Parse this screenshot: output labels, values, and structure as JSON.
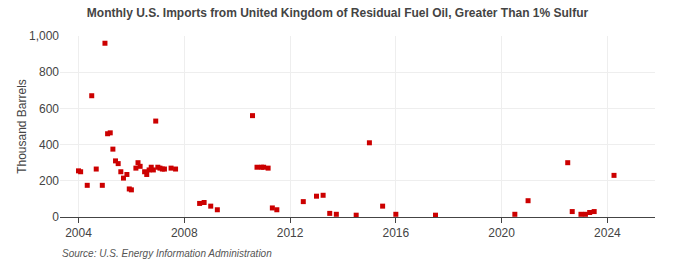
{
  "chart_data": {
    "type": "scatter",
    "title": "Monthly U.S. Imports from United Kingdom of Residual Fuel Oil, Greater Than 1% Sulfur",
    "ylabel": "Thousand Barrels",
    "annotations": [
      "Source: U.S. Energy Information Administration"
    ],
    "color": "#cc0000",
    "marker": "square",
    "grid": true,
    "xlim": [
      2003.3,
      2025.8
    ],
    "xticks": [
      2004,
      2008,
      2012,
      2016,
      2020,
      2024
    ],
    "ylim": [
      0,
      1000
    ],
    "yticks": [
      0,
      200,
      400,
      600,
      800,
      {
        "value": 1000,
        "label": "1,000"
      }
    ],
    "x": [
      2004.0,
      2004.08,
      2004.33,
      2004.5,
      2004.67,
      2004.9,
      2005.0,
      2005.1,
      2005.2,
      2005.3,
      2005.4,
      2005.5,
      2005.6,
      2005.7,
      2005.83,
      2005.92,
      2006.0,
      2006.17,
      2006.25,
      2006.33,
      2006.5,
      2006.58,
      2006.67,
      2006.75,
      2006.83,
      2006.92,
      2007.0,
      2007.08,
      2007.17,
      2007.25,
      2007.5,
      2007.67,
      2008.58,
      2008.75,
      2009.0,
      2009.25,
      2010.58,
      2010.75,
      2010.92,
      2011.0,
      2011.17,
      2011.33,
      2011.5,
      2012.5,
      2013.0,
      2013.25,
      2013.5,
      2013.75,
      2014.5,
      2015.0,
      2015.5,
      2016.0,
      2017.5,
      2020.5,
      2021.0,
      2022.5,
      2022.67,
      2023.0,
      2023.17,
      2023.33,
      2023.5,
      2024.25
    ],
    "values": [
      255,
      250,
      175,
      670,
      265,
      175,
      960,
      460,
      465,
      375,
      310,
      295,
      250,
      215,
      235,
      155,
      150,
      270,
      300,
      280,
      250,
      235,
      260,
      275,
      260,
      530,
      275,
      270,
      265,
      265,
      270,
      265,
      75,
      80,
      60,
      40,
      560,
      275,
      275,
      275,
      270,
      50,
      40,
      85,
      115,
      120,
      20,
      15,
      10,
      410,
      60,
      15,
      10,
      15,
      90,
      300,
      30,
      15,
      15,
      25,
      30,
      230
    ]
  }
}
